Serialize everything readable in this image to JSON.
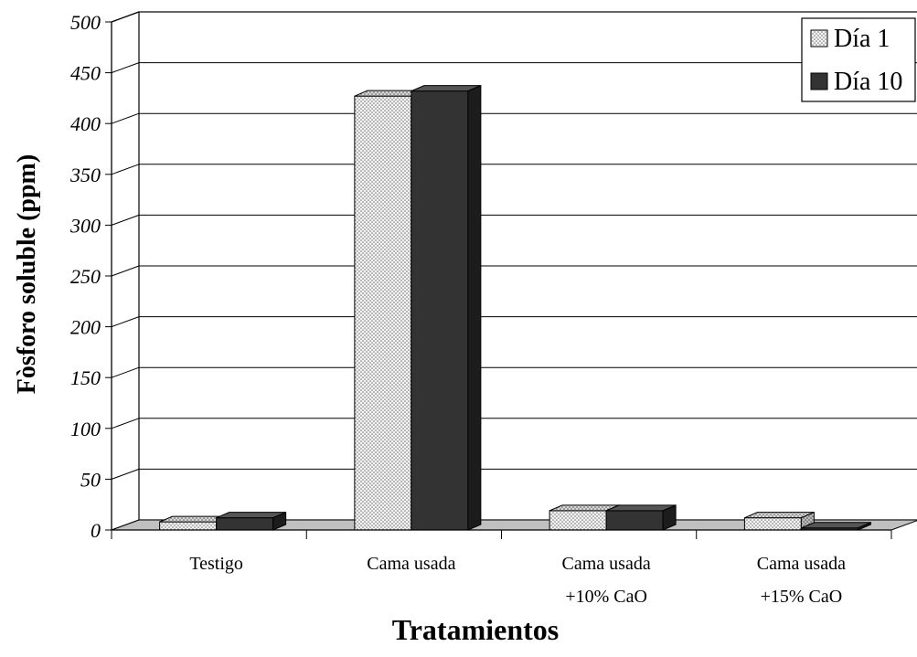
{
  "chart_data": {
    "type": "bar",
    "title": "",
    "xlabel": "Tratamientos",
    "ylabel": "Fòsforo soluble (ppm)",
    "ylim": [
      0,
      500
    ],
    "yticks": [
      "0",
      "50",
      "100",
      "150",
      "200",
      "250",
      "300",
      "350",
      "400",
      "450",
      "500"
    ],
    "categories": [
      [
        "Testigo"
      ],
      [
        "Cama usada"
      ],
      [
        "Cama usada",
        "+10% CaO"
      ],
      [
        "Cama usada",
        "+15% CaO"
      ]
    ],
    "series": [
      {
        "name": "Día 1",
        "values": [
          8,
          427,
          19,
          12
        ],
        "pattern": "dotted",
        "color": "#f2f2f2"
      },
      {
        "name": "Día 10",
        "values": [
          12,
          432,
          19,
          2
        ],
        "pattern": "solid",
        "color": "#333333"
      }
    ],
    "grid": true,
    "legend": "top-right",
    "floor_color": "#c0c0c0"
  }
}
